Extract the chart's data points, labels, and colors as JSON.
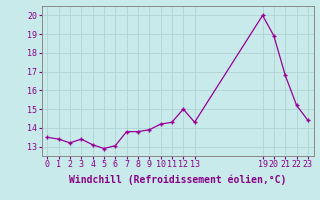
{
  "x": [
    0,
    1,
    2,
    3,
    4,
    5,
    6,
    7,
    8,
    9,
    10,
    11,
    12,
    13,
    19,
    20,
    21,
    22,
    23
  ],
  "y": [
    13.5,
    13.4,
    13.2,
    13.4,
    13.1,
    12.9,
    13.05,
    13.8,
    13.8,
    13.9,
    14.2,
    14.3,
    15.0,
    14.3,
    20.0,
    18.9,
    16.8,
    15.2,
    14.4
  ],
  "line_color": "#990099",
  "marker": "+",
  "xlabel": "Windchill (Refroidissement éolien,°C)",
  "xlim": [
    -0.5,
    23.5
  ],
  "ylim": [
    12.5,
    20.5
  ],
  "yticks": [
    13,
    14,
    15,
    16,
    17,
    18,
    19,
    20
  ],
  "xticks": [
    0,
    1,
    2,
    3,
    4,
    5,
    6,
    7,
    8,
    9,
    10,
    11,
    12,
    13,
    19,
    20,
    21,
    22,
    23
  ],
  "background_color": "#c8eaea",
  "grid_color": "#b0d4d4",
  "label_color": "#880088",
  "tick_color": "#880088",
  "spine_color": "#888888",
  "xlabel_fontsize": 7,
  "tick_fontsize": 6,
  "linewidth": 0.9,
  "markersize": 3.5,
  "markeredgewidth": 1.0
}
